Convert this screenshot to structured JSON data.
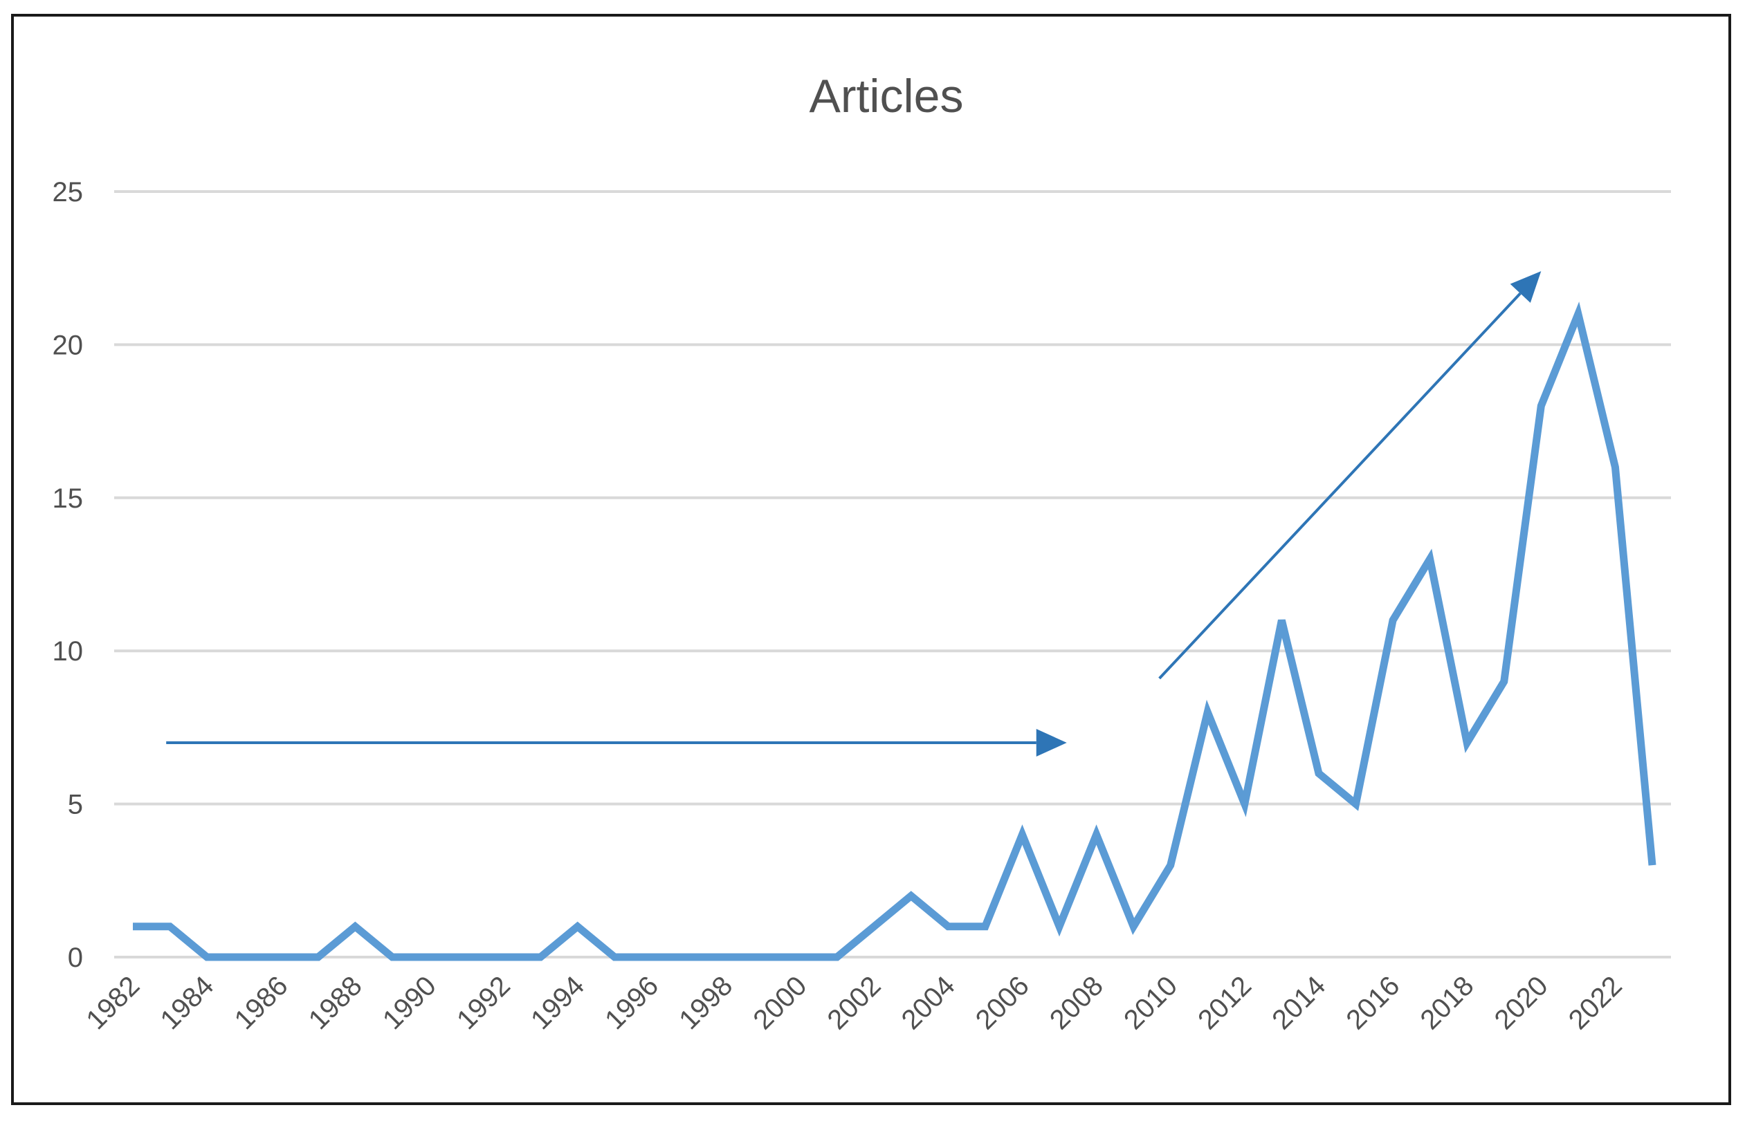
{
  "chart_data": {
    "type": "line",
    "title": "Articles",
    "xlabel": "",
    "ylabel": "",
    "ylim": [
      0,
      25
    ],
    "yticks": [
      "0",
      "5",
      "10",
      "15",
      "20",
      "25"
    ],
    "x": [
      1982,
      1983,
      1984,
      1985,
      1986,
      1987,
      1988,
      1989,
      1990,
      1991,
      1992,
      1993,
      1994,
      1995,
      1996,
      1997,
      1998,
      1999,
      2000,
      2001,
      2002,
      2003,
      2004,
      2005,
      2006,
      2007,
      2008,
      2009,
      2010,
      2011,
      2012,
      2013,
      2014,
      2015,
      2016,
      2017,
      2018,
      2019,
      2020,
      2021,
      2022,
      2023
    ],
    "xtick_labels": [
      "1982",
      "1984",
      "1986",
      "1988",
      "1990",
      "1992",
      "1994",
      "1996",
      "1998",
      "2000",
      "2002",
      "2004",
      "2006",
      "2008",
      "2010",
      "2012",
      "2014",
      "2016",
      "2018",
      "2020",
      "2022"
    ],
    "series": [
      {
        "values": [
          1,
          1,
          0,
          0,
          0,
          0,
          1,
          0,
          0,
          0,
          0,
          0,
          1,
          0,
          0,
          0,
          0,
          0,
          0,
          0,
          1,
          2,
          1,
          1,
          4,
          1,
          4,
          1,
          3,
          8,
          5,
          11,
          6,
          5,
          11,
          13,
          7,
          9,
          18,
          21,
          16,
          3
        ],
        "color": "#5b9bd5"
      }
    ],
    "annotations": [
      {
        "type": "arrow",
        "direction": "horizontal",
        "from": [
          1982.9,
          7
        ],
        "to": [
          2007.2,
          7
        ]
      },
      {
        "type": "arrow",
        "direction": "diagonal-up",
        "from": [
          2009.7,
          9.1
        ],
        "to": [
          2020.0,
          22.4
        ]
      }
    ],
    "grid": true,
    "legend": "none"
  },
  "colors": {
    "line": "#5b9bd5",
    "arrow": "#2e75b6",
    "grid": "#d9d9d9",
    "text": "#505050"
  }
}
